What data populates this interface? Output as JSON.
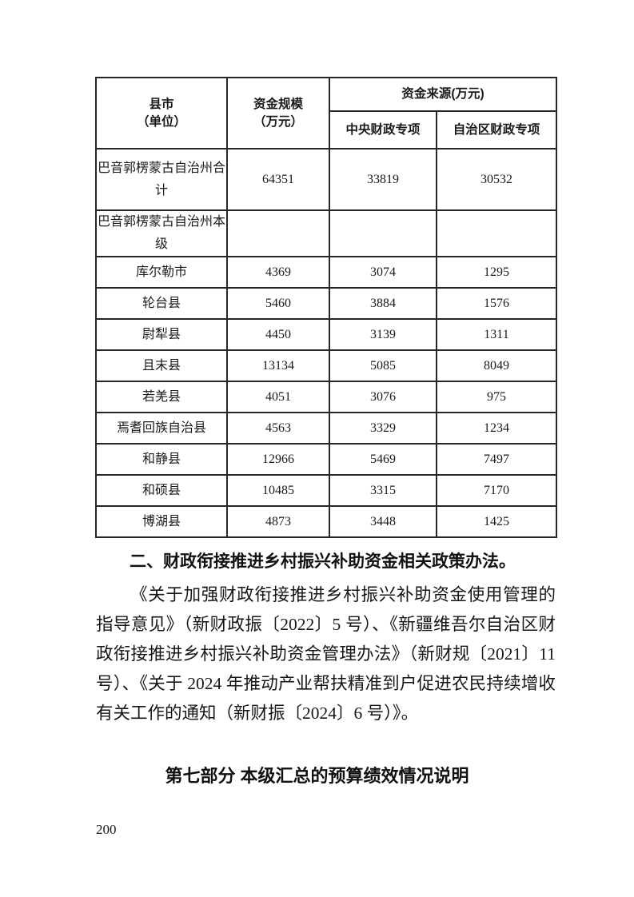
{
  "colors": {
    "background": "#ffffff",
    "text": "#1a1a1a",
    "table_border": "#262626"
  },
  "table": {
    "header": {
      "col_region": "县市\n（单位）",
      "col_scale": "资金规模\n（万元）",
      "col_source_group": "资金来源(万元)",
      "col_central": "中央财政专项",
      "col_autonomous": "自治区财政专项"
    },
    "rows": [
      {
        "name": "巴音郭楞蒙古自治州合计",
        "scale": "64351",
        "central": "33819",
        "autonomous": "30532"
      },
      {
        "name": "巴音郭楞蒙古自治州本级",
        "scale": "",
        "central": "",
        "autonomous": ""
      },
      {
        "name": "库尔勒市",
        "scale": "4369",
        "central": "3074",
        "autonomous": "1295"
      },
      {
        "name": "轮台县",
        "scale": "5460",
        "central": "3884",
        "autonomous": "1576"
      },
      {
        "name": "尉犁县",
        "scale": "4450",
        "central": "3139",
        "autonomous": "1311"
      },
      {
        "name": "且末县",
        "scale": "13134",
        "central": "5085",
        "autonomous": "8049"
      },
      {
        "name": "若羌县",
        "scale": "4051",
        "central": "3076",
        "autonomous": "975"
      },
      {
        "name": "焉耆回族自治县",
        "scale": "4563",
        "central": "3329",
        "autonomous": "1234"
      },
      {
        "name": "和静县",
        "scale": "12966",
        "central": "5469",
        "autonomous": "7497"
      },
      {
        "name": "和硕县",
        "scale": "10485",
        "central": "3315",
        "autonomous": "7170"
      },
      {
        "name": "博湖县",
        "scale": "4873",
        "central": "3448",
        "autonomous": "1425"
      }
    ]
  },
  "section": {
    "heading": "二、财政衔接推进乡村振兴补助资金相关政策办法。",
    "paragraph": "《关于加强财政衔接推进乡村振兴补助资金使用管理的指导意见》（新财政振〔2022〕5 号）、《新疆维吾尔自治区财政衔接推进乡村振兴补助资金管理办法》（新财规〔2021〕11 号）、《关于 2024 年推动产业帮扶精准到户促进农民持续增收有关工作的通知（新财振〔2024〕6 号）》。"
  },
  "part_heading": "第七部分 本级汇总的预算绩效情况说明",
  "page": {
    "number": "200"
  }
}
